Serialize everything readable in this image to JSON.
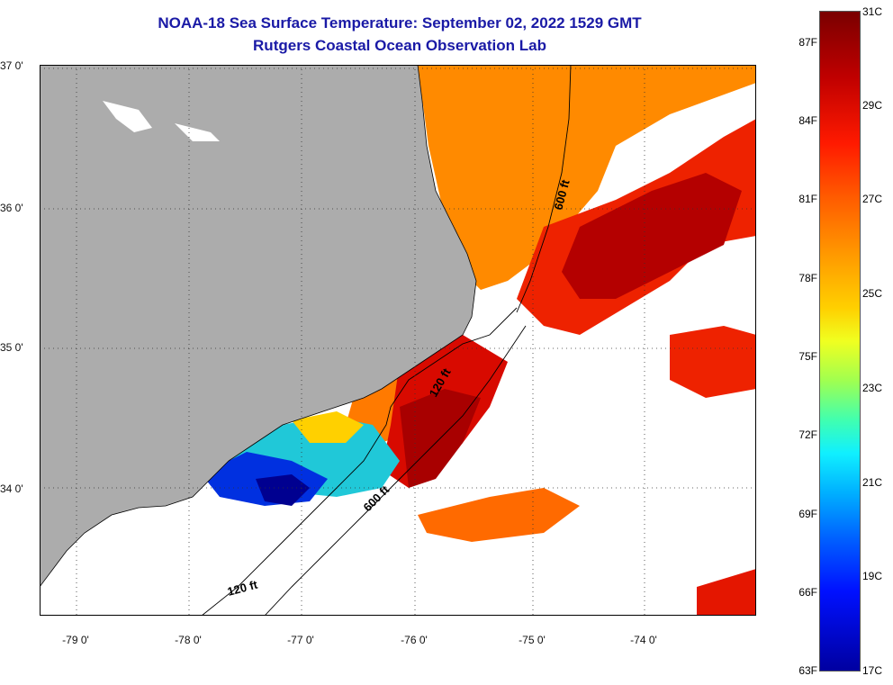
{
  "header": {
    "title": "NOAA-18 Sea Surface Temperature:  September 02, 2022 1529 GMT",
    "subtitle": "Rutgers Coastal Ocean Observation Lab"
  },
  "map": {
    "lat_labels": [
      "37 0'",
      "36 0'",
      "35 0'",
      "34 0'"
    ],
    "lon_labels": [
      "-79 0'",
      "-78 0'",
      "-77 0'",
      "-76 0'",
      "-75 0'",
      "-74 0'"
    ],
    "contours": [
      "600 ft",
      "120 ft",
      "600 ft",
      "120 ft"
    ],
    "colors": {
      "land": "#acacac",
      "cloud": "#ffffff",
      "warm_dark": "#b40000",
      "warm": "#ee2200",
      "orange": "#ff8a00",
      "cool_cyan": "#20d0e0",
      "cool_blue": "#0030e0",
      "deep_blue": "#000080"
    }
  },
  "colorbar": {
    "f_labels": [
      "87F",
      "84F",
      "81F",
      "78F",
      "75F",
      "72F",
      "69F",
      "66F",
      "63F"
    ],
    "c_labels": [
      "31C",
      "29C",
      "27C",
      "25C",
      "23C",
      "21C",
      "19C",
      "17C"
    ]
  }
}
